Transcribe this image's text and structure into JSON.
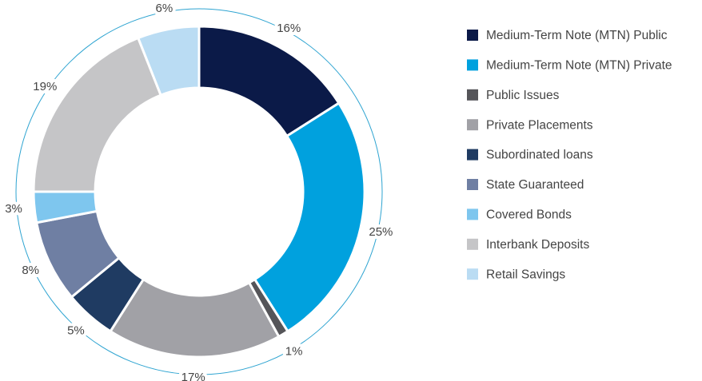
{
  "chart_data": {
    "type": "donut",
    "categories": [
      "Medium-Term Note (MTN) Public",
      "Medium-Term Note (MTN) Private",
      "Public Issues",
      "Private Placements",
      "Subordinated loans",
      "State Guaranteed",
      "Covered Bonds",
      "Interbank Deposits",
      "Retail Savings"
    ],
    "values": [
      16,
      25,
      1,
      17,
      5,
      8,
      3,
      19,
      6
    ],
    "value_labels": [
      "16%",
      "25%",
      "1%",
      "17%",
      "5%",
      "8%",
      "3%",
      "19%",
      "6%"
    ],
    "colors": [
      "#0b1a48",
      "#00a1de",
      "#555559",
      "#a1a1a6",
      "#1f3b62",
      "#6f7fa3",
      "#7ec6ee",
      "#c5c5c7",
      "#badcf3"
    ],
    "ring_color": "#2ea4d1",
    "legend": "right"
  }
}
